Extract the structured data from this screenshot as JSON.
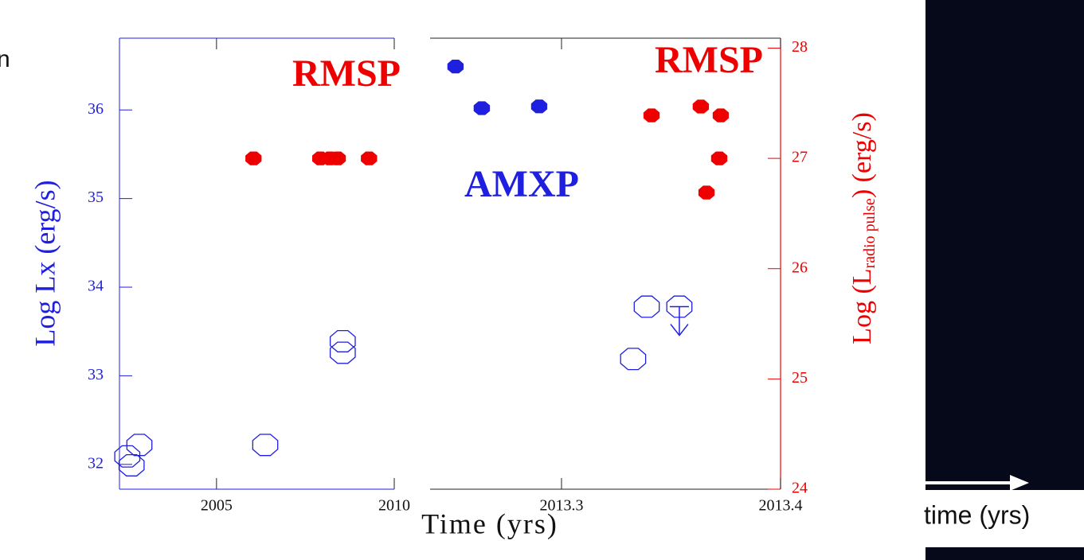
{
  "slide": {
    "fragment": "n",
    "arrow_label": "time (yrs)"
  },
  "chart_data": [
    {
      "type": "scatter",
      "xlabel": "Time (yrs)",
      "ylabel": "Log Lx (erg/s)",
      "xlim": [
        2002.27,
        2010
      ],
      "xticks": [
        2005,
        2010
      ],
      "ylim": [
        31.72,
        36.81
      ],
      "yticks": [
        32,
        33,
        34,
        35,
        36
      ],
      "y2lim": [
        24,
        28.09
      ],
      "annotations": [
        "RMSP"
      ],
      "series": [
        {
          "axis": "y",
          "color": "#1f1fe0",
          "marker": "open",
          "x": [
            2002.49,
            2002.61,
            2002.83,
            2006.37,
            2008.55,
            2008.55
          ],
          "values": [
            32.09,
            31.99,
            32.22,
            32.22,
            33.39,
            33.26
          ]
        },
        {
          "axis": "y2",
          "color": "#ee0000",
          "marker": "filled",
          "x": [
            2006.04,
            2007.92,
            2008.19,
            2008.41,
            2009.29
          ],
          "values": [
            27.0,
            27.0,
            27.0,
            27.0,
            27.0
          ]
        }
      ]
    },
    {
      "type": "scatter",
      "y2label": {
        "main": "Log (L",
        "sub": "radio pulse",
        "tail": ") (erg/s)"
      },
      "xlim": [
        2013.24,
        2013.4
      ],
      "xticks": [
        2013.3,
        2013.4
      ],
      "ylim": [
        31.72,
        36.81
      ],
      "y2lim": [
        24,
        28.09
      ],
      "y2ticks": [
        24,
        25,
        26,
        27,
        28
      ],
      "annotations": [
        "RMSP",
        "AMXP"
      ],
      "series": [
        {
          "axis": "y",
          "color": "#1f1fe0",
          "marker": "filled",
          "x": [
            2013.2516,
            2013.2636,
            2013.2898
          ],
          "values": [
            36.49,
            36.02,
            36.04
          ]
        },
        {
          "axis": "y2",
          "color": "#ee0000",
          "marker": "filled",
          "x": [
            2013.3411,
            2013.3636,
            2013.3727,
            2013.372,
            2013.3662
          ],
          "values": [
            27.39,
            27.47,
            27.39,
            27.0,
            26.69
          ]
        },
        {
          "axis": "y",
          "color": "#1f1fe0",
          "marker": "open",
          "x": [
            2013.3327,
            2013.3389,
            2013.3538
          ],
          "values": [
            33.19,
            33.78,
            33.78
          ],
          "upper_limits": [
            false,
            false,
            true
          ]
        }
      ]
    }
  ]
}
